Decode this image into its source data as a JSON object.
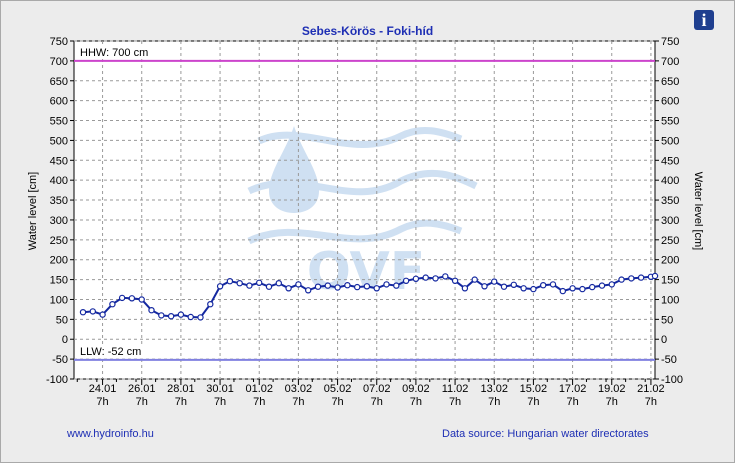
{
  "header": {
    "title": "Sebes-Körös - Foki-híd"
  },
  "info_icon": {
    "name": "info-icon",
    "glyph": "i"
  },
  "watermark": {
    "text": "OVF"
  },
  "footer": {
    "left_link": "www.hydroinfo.hu",
    "right_text": "Data source: Hungarian water directorates"
  },
  "chart_data": {
    "type": "line",
    "title": "Sebes-Körös - Foki-híd",
    "ylabel": "Water level [cm]",
    "ylabel_right": "Water level [cm]",
    "ylim": [
      -100,
      750
    ],
    "yticks": [
      -100,
      -50,
      0,
      50,
      100,
      150,
      200,
      250,
      300,
      350,
      400,
      450,
      500,
      550,
      600,
      650,
      700,
      750
    ],
    "x_range_days": [
      "22.01 20:00",
      "21.02 12:00"
    ],
    "xtick_labels": [
      "24.01",
      "26.01",
      "28.01",
      "30.01",
      "01.02",
      "03.02",
      "05.02",
      "07.02",
      "09.02",
      "11.02",
      "13.02",
      "15.02",
      "17.02",
      "19.02",
      "21.02"
    ],
    "xtick_sublabel": "7h",
    "grid": true,
    "reference_lines": [
      {
        "label": "HHW: 700 cm",
        "value": 700,
        "color": "#cc44cc"
      },
      {
        "label": "LLW: -52 cm",
        "value": -52,
        "color": "#8080e0"
      }
    ],
    "series": [
      {
        "color": "#1428a0",
        "points": [
          [
            "23.01 7h",
            68
          ],
          [
            "23.01 19h",
            70
          ],
          [
            "24.01 7h",
            62
          ],
          [
            "24.01 19h",
            88
          ],
          [
            "25.01 7h",
            104
          ],
          [
            "25.01 19h",
            103
          ],
          [
            "26.01 7h",
            100
          ],
          [
            "26.01 19h",
            73
          ],
          [
            "27.01 7h",
            60
          ],
          [
            "27.01 19h",
            58
          ],
          [
            "28.01 7h",
            62
          ],
          [
            "28.01 19h",
            56
          ],
          [
            "29.01 7h",
            55
          ],
          [
            "29.01 19h",
            88
          ],
          [
            "30.01 7h",
            133
          ],
          [
            "30.01 19h",
            146
          ],
          [
            "31.01 7h",
            141
          ],
          [
            "31.01 19h",
            135
          ],
          [
            "01.02 7h",
            142
          ],
          [
            "01.02 19h",
            132
          ],
          [
            "02.02 7h",
            141
          ],
          [
            "02.02 19h",
            128
          ],
          [
            "03.02 7h",
            138
          ],
          [
            "03.02 19h",
            123
          ],
          [
            "04.02 7h",
            132
          ],
          [
            "04.02 19h",
            135
          ],
          [
            "05.02 7h",
            130
          ],
          [
            "05.02 19h",
            136
          ],
          [
            "06.02 7h",
            131
          ],
          [
            "06.02 19h",
            133
          ],
          [
            "07.02 7h",
            128
          ],
          [
            "07.02 19h",
            138
          ],
          [
            "08.02 7h",
            135
          ],
          [
            "08.02 19h",
            147
          ],
          [
            "09.02 7h",
            152
          ],
          [
            "09.02 19h",
            155
          ],
          [
            "10.02 7h",
            153
          ],
          [
            "10.02 19h",
            158
          ],
          [
            "11.02 7h",
            147
          ],
          [
            "11.02 19h",
            128
          ],
          [
            "12.02 7h",
            150
          ],
          [
            "12.02 19h",
            133
          ],
          [
            "13.02 7h",
            145
          ],
          [
            "13.02 19h",
            132
          ],
          [
            "14.02 7h",
            137
          ],
          [
            "14.02 19h",
            128
          ],
          [
            "15.02 7h",
            126
          ],
          [
            "15.02 19h",
            136
          ],
          [
            "16.02 7h",
            138
          ],
          [
            "16.02 19h",
            121
          ],
          [
            "17.02 7h",
            128
          ],
          [
            "17.02 19h",
            126
          ],
          [
            "18.02 7h",
            131
          ],
          [
            "18.02 19h",
            135
          ],
          [
            "19.02 7h",
            138
          ],
          [
            "19.02 19h",
            150
          ],
          [
            "20.02 7h",
            153
          ],
          [
            "20.02 19h",
            155
          ],
          [
            "21.02 7h",
            157
          ],
          [
            "21.02 12h",
            159
          ]
        ]
      }
    ]
  }
}
